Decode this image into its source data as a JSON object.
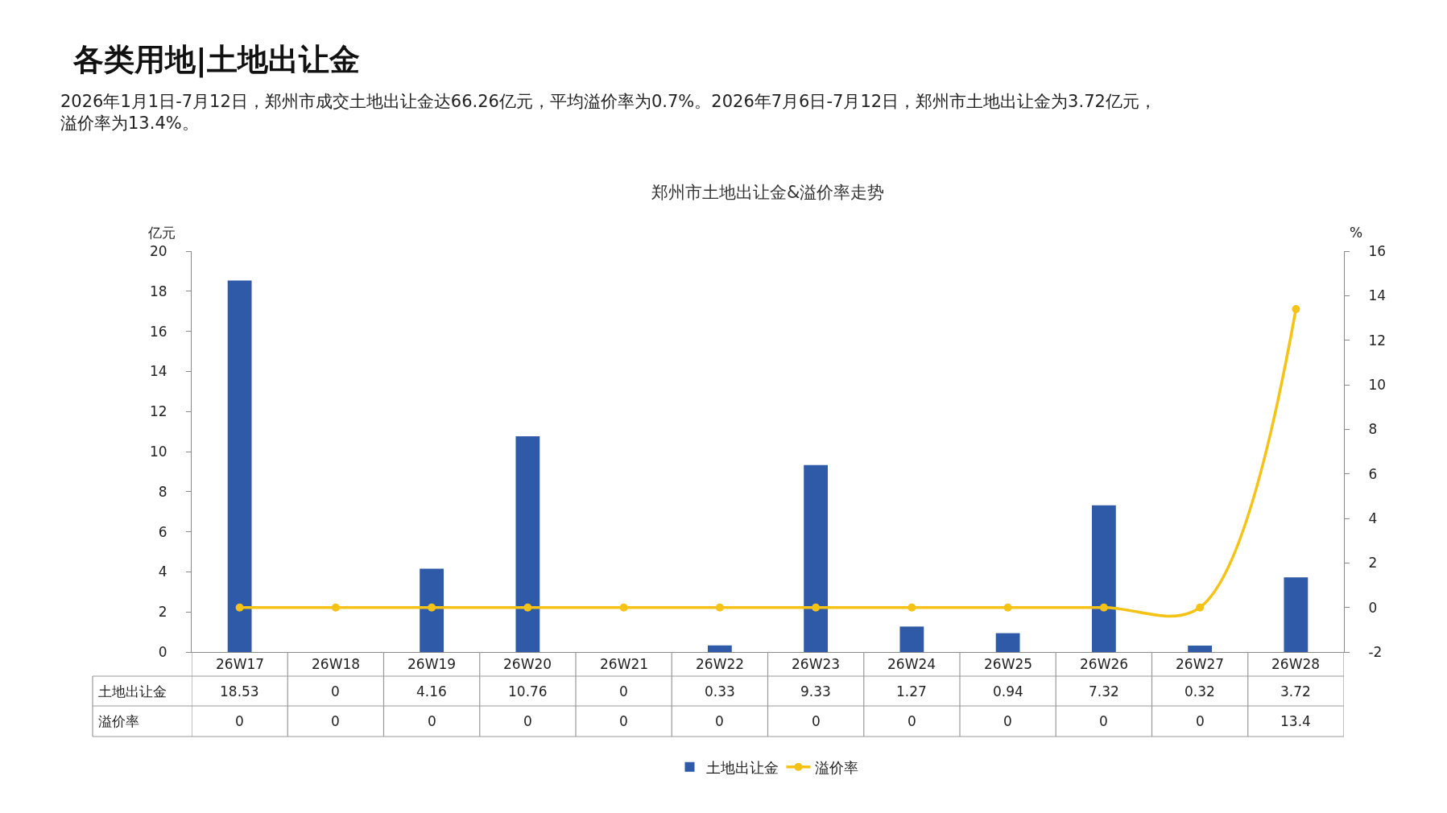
{
  "chart_data": {
    "type": "bar",
    "title": "郑州市土地出让金&溢价率走势",
    "annotations": [
      "各类用地|土地出让金",
      "2026年1月1日-7月12日，郑州市成交土地出让金达66.26亿元，平均溢价率为0.7%。2026年7月6日-7月12日，郑州市土地出让金为3.72亿元，溢价率为13.4%。"
    ],
    "ylabel": "亿元",
    "y2label": "%",
    "categories": [
      "26W17",
      "26W18",
      "26W19",
      "26W20",
      "26W21",
      "26W22",
      "26W23",
      "26W24",
      "26W25",
      "26W26",
      "26W27",
      "26W28"
    ],
    "series": [
      {
        "name": "土地出让金",
        "color": "#2e5aa7",
        "values": [
          18.53,
          0,
          4.16,
          10.76,
          0,
          0.33,
          9.33,
          1.27,
          0.94,
          7.32,
          0.32,
          3.72
        ]
      },
      {
        "name": "溢价率",
        "type": "line",
        "axis": "y2",
        "color": "#f5c216",
        "marker": "circle",
        "values": [
          0,
          0,
          0,
          0,
          0,
          0,
          0,
          0,
          0,
          0,
          0,
          13.4
        ]
      }
    ],
    "ylim": [
      0,
      20
    ],
    "yticks": [
      0,
      2,
      4,
      6,
      8,
      10,
      12,
      14,
      16,
      18,
      20
    ],
    "y2lim": [
      -2,
      16
    ],
    "y2ticks": [
      -2,
      0,
      2,
      4,
      6,
      8,
      10,
      12,
      14,
      16
    ],
    "data_labels": true,
    "legend": "bottom",
    "grid": false
  }
}
